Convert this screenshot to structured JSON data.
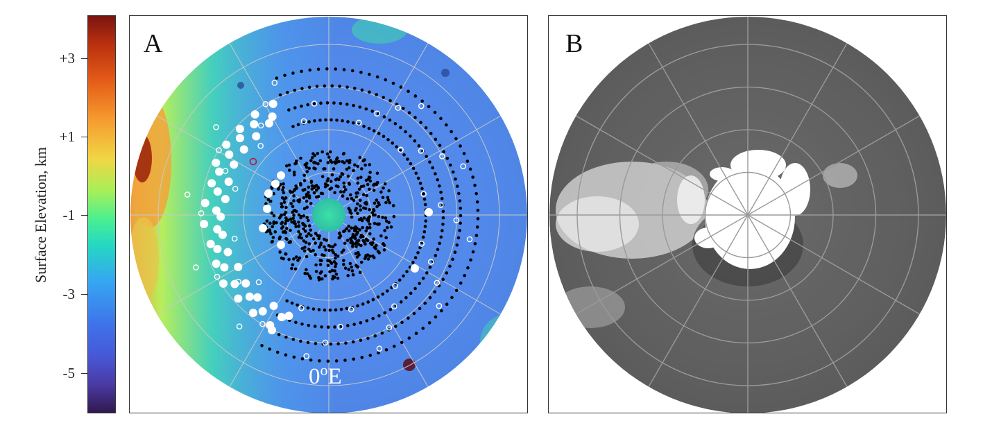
{
  "colorbar": {
    "title": "Surface Elevation, km",
    "ticks": [
      "+3",
      "+1",
      "-1",
      "-3",
      "-5"
    ]
  },
  "panel_a": {
    "label": "A",
    "longitude_label_value": "0",
    "longitude_label_degree": "o",
    "longitude_label_unit": "E"
  },
  "panel_b": {
    "label": "B"
  },
  "colors": {
    "marker_filled": "#ffffff",
    "marker_open": "#ffffff",
    "marker_small": "#000000",
    "marker_highlight": "#c8102e",
    "grid": "#c9c9c9"
  }
}
